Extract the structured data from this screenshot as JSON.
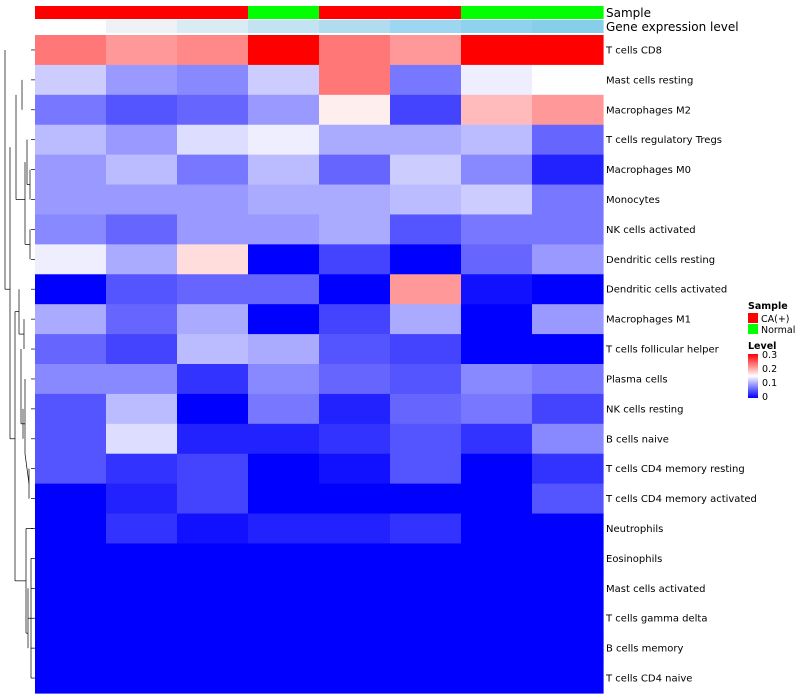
{
  "chart_data": {
    "type": "heatmap",
    "title": "",
    "rows": [
      "T cells CD8",
      "Mast cells resting",
      "Macrophages M2",
      "T cells regulatory  Tregs",
      "Macrophages M0",
      "Monocytes",
      "NK cells activated",
      "Dendritic cells resting",
      "Dendritic cells activated",
      "Macrophages M1",
      "T cells follicular helper",
      "Plasma cells",
      "NK cells resting",
      "B cells naive",
      "T cells CD4 memory resting",
      "T cells CD4 memory activated",
      "Neutrophils",
      "Eosinophils",
      "Mast cells activated",
      "T cells gamma delta",
      "B cells memory",
      "T cells CD4 naive"
    ],
    "n_columns": 8,
    "values": [
      [
        0.23,
        0.21,
        0.22,
        0.3,
        0.23,
        0.21,
        0.3,
        0.3
      ],
      [
        0.12,
        0.09,
        0.08,
        0.12,
        0.23,
        0.07,
        0.14,
        0.15
      ],
      [
        0.07,
        0.05,
        0.06,
        0.09,
        0.16,
        0.04,
        0.19,
        0.21
      ],
      [
        0.11,
        0.09,
        0.13,
        0.14,
        0.1,
        0.1,
        0.11,
        0.06
      ],
      [
        0.09,
        0.11,
        0.07,
        0.11,
        0.06,
        0.12,
        0.08,
        0.02
      ],
      [
        0.09,
        0.09,
        0.09,
        0.1,
        0.1,
        0.11,
        0.12,
        0.07
      ],
      [
        0.08,
        0.06,
        0.09,
        0.09,
        0.1,
        0.05,
        0.07,
        0.07
      ],
      [
        0.14,
        0.1,
        0.17,
        0.0,
        0.04,
        0.0,
        0.06,
        0.09
      ],
      [
        0.0,
        0.05,
        0.06,
        0.06,
        0.0,
        0.21,
        0.01,
        0.0
      ],
      [
        0.1,
        0.06,
        0.1,
        0.0,
        0.04,
        0.1,
        0.0,
        0.09
      ],
      [
        0.06,
        0.04,
        0.11,
        0.1,
        0.05,
        0.04,
        0.0,
        0.0
      ],
      [
        0.08,
        0.08,
        0.03,
        0.08,
        0.06,
        0.05,
        0.08,
        0.07
      ],
      [
        0.05,
        0.11,
        0.0,
        0.07,
        0.02,
        0.06,
        0.07,
        0.04
      ],
      [
        0.05,
        0.13,
        0.02,
        0.02,
        0.03,
        0.05,
        0.03,
        0.08
      ],
      [
        0.05,
        0.03,
        0.04,
        0.0,
        0.01,
        0.05,
        0.0,
        0.03
      ],
      [
        0.0,
        0.02,
        0.04,
        0.0,
        0.0,
        0.0,
        0.0,
        0.05
      ],
      [
        0.0,
        0.03,
        0.01,
        0.02,
        0.02,
        0.03,
        0.0,
        0.0
      ],
      [
        0.0,
        0.0,
        0.0,
        0.0,
        0.0,
        0.0,
        0.0,
        0.0
      ],
      [
        0.0,
        0.0,
        0.0,
        0.0,
        0.0,
        0.0,
        0.0,
        0.0
      ],
      [
        0.0,
        0.0,
        0.0,
        0.0,
        0.0,
        0.0,
        0.0,
        0.0
      ],
      [
        0.0,
        0.0,
        0.0,
        0.0,
        0.0,
        0.0,
        0.0,
        0.0
      ],
      [
        0.0,
        0.0,
        0.0,
        0.0,
        0.0,
        0.0,
        0.0,
        0.0
      ]
    ],
    "column_annotations": {
      "sample": {
        "label": "Sample",
        "values": [
          "CA(+)",
          "CA(+)",
          "CA(+)",
          "Normal",
          "CA(+)",
          "CA(+)",
          "Normal",
          "Normal"
        ]
      },
      "gene_expression": {
        "label": "Gene expression level",
        "values": [
          "#ffffff",
          "#eef2f6",
          "#d9ecf4",
          "#c4e3f2",
          "#b0dcf0",
          "#9dd6f0",
          "#8fd1ef",
          "#87ceeb"
        ]
      }
    },
    "legend": {
      "sample": {
        "title": "Sample",
        "entries": [
          {
            "label": "CA(+)",
            "color": "#ff0000"
          },
          {
            "label": "Normal",
            "color": "#00ff00"
          }
        ]
      },
      "level": {
        "title": "Level",
        "ticks": [
          "0.3",
          "0.2",
          "0.1",
          "0"
        ],
        "range": [
          0,
          0.3
        ]
      }
    },
    "colors": {
      "low": "#0000ff",
      "mid": "#ffffff",
      "high": "#ff0000"
    },
    "color_scale_range": [
      0,
      0.3
    ],
    "dendrogram": "row clustering tree drawn on left"
  }
}
